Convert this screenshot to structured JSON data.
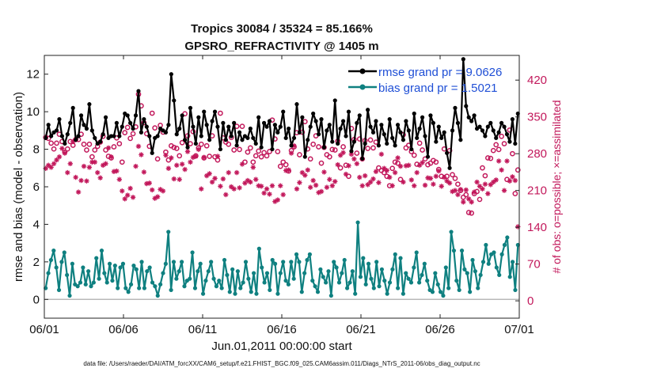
{
  "chart_data": {
    "type": "line",
    "title": "Tropics 30084 / 35324 = 85.166%",
    "subtitle": "GPSRO_REFRACTIVITY @ 1405 m",
    "xlabel": "Jun.01,2011 00:00:00 start",
    "ylabel": "rmse and bias (model - observation)",
    "ylabel_right": "# of obs: o=possible; ×=assimilated",
    "xlim": [
      0,
      30
    ],
    "ylim": [
      -1,
      13
    ],
    "ylim_right": [
      -33,
      467
    ],
    "x_tick_values": [
      0,
      5,
      10,
      15,
      20,
      25,
      30
    ],
    "x_tick_labels": [
      "06/01",
      "06/06",
      "06/11",
      "06/16",
      "06/21",
      "06/26",
      "07/01"
    ],
    "y_ticks": [
      0,
      2,
      4,
      6,
      8,
      10,
      12
    ],
    "y_ticks_right": [
      0,
      70,
      140,
      210,
      280,
      350,
      420
    ],
    "legend": [
      "rmse grand pr = 9.0626",
      "bias grand pr = 1.5021"
    ],
    "footer": "data file: /Users/raeder/DAI/ATM_forcXX/CAM6_setup/f.e21.FHIST_BGC.f09_025.CAM6assim.011/Diags_NTrS_2011-06/obs_diag_output.nc",
    "colors": {
      "rmse": "#000000",
      "bias": "#0f8080",
      "counts": "#c2185b",
      "zero_line": "#b9b9b9"
    },
    "series": [
      {
        "name": "rmse",
        "values": [
          8.6,
          9.3,
          8.7,
          8.9,
          9.0,
          9.6,
          8.7,
          8.3,
          8.8,
          9.4,
          10.2,
          8.5,
          8.7,
          9.8,
          9.3,
          9.1,
          10.4,
          9.0,
          8.6,
          8.3,
          8.4,
          8.8,
          9.7,
          8.6,
          8.7,
          8.7,
          9.4,
          8.7,
          9.2,
          9.9,
          9.8,
          9.4,
          9.1,
          9.8,
          11.1,
          8.9,
          9.6,
          9.2,
          8.7,
          7.8,
          8.6,
          8.7,
          9.1,
          9.0,
          8.9,
          9.3,
          12.0,
          10.6,
          8.8,
          9.1,
          9.8,
          8.5,
          8.1,
          10.2,
          9.2,
          8.3,
          9.7,
          8.7,
          10.0,
          9.3,
          8.5,
          9.5,
          10.0,
          9.2,
          8.0,
          9.4,
          8.5,
          9.2,
          8.7,
          9.4,
          8.2,
          8.9,
          8.5,
          8.7,
          8.6,
          9.1,
          8.6,
          8.3,
          9.7,
          8.1,
          9.4,
          9.2,
          9.5,
          8.0,
          9.3,
          8.9,
          9.2,
          10.0,
          8.6,
          9.1,
          8.2,
          8.6,
          10.4,
          8.9,
          9.7,
          7.6,
          8.5,
          9.2,
          9.9,
          9.5,
          8.8,
          9.6,
          8.1,
          9.0,
          9.3,
          8.4,
          10.6,
          8.3,
          9.1,
          9.5,
          8.7,
          10.0,
          7.9,
          8.4,
          9.4,
          9.8,
          7.5,
          8.3,
          10.1,
          9.2,
          8.9,
          9.5,
          8.2,
          9.3,
          8.8,
          8.3,
          9.6,
          8.6,
          8.2,
          9.3,
          8.9,
          8.5,
          9.5,
          9.0,
          8.0,
          9.9,
          8.6,
          9.1,
          9.7,
          8.7,
          7.6,
          9.8,
          9.4,
          8.4,
          9.2,
          8.6,
          8.9,
          7.8,
          7.0,
          9.0,
          10.2,
          9.4,
          8.5,
          12.8,
          10.3,
          9.7,
          9.5,
          9.8,
          9.1,
          9.2,
          9.0,
          8.7,
          9.2,
          9.4,
          9.0,
          8.6,
          8.9,
          9.4,
          9.2,
          8.8,
          8.4,
          9.6,
          8.3,
          9.9
        ]
      },
      {
        "name": "bias",
        "values": [
          0.6,
          1.4,
          2.1,
          2.6,
          1.7,
          0.5,
          2.0,
          2.5,
          1.3,
          0.2,
          1.9,
          0.8,
          0.7,
          0.9,
          1.7,
          0.8,
          1.5,
          0.7,
          0.9,
          2.2,
          1.1,
          2.6,
          1.4,
          0.9,
          1.9,
          1.0,
          1.8,
          0.6,
          1.7,
          1.9,
          0.6,
          0.4,
          0.8,
          1.8,
          1.6,
          0.6,
          2.0,
          0.6,
          1.5,
          1.7,
          0.9,
          0.7,
          0.2,
          0.8,
          1.4,
          1.9,
          3.6,
          0.5,
          2.0,
          1.1,
          1.5,
          2.0,
          0.7,
          1.0,
          1.1,
          2.5,
          0.6,
          1.5,
          1.9,
          0.3,
          1.0,
          1.5,
          2.0,
          1.1,
          0.7,
          1.0,
          0.6,
          2.1,
          1.3,
          0.4,
          1.6,
          0.3,
          1.5,
          0.6,
          0.9,
          2.0,
          1.1,
          0.4,
          1.4,
          0.3,
          2.7,
          1.7,
          0.9,
          1.4,
          0.5,
          2.1,
          1.9,
          0.3,
          1.4,
          2.0,
          1.0,
          0.8,
          2.0,
          1.1,
          2.4,
          2.0,
          0.4,
          1.4,
          2.1,
          2.4,
          1.0,
          0.7,
          0.4,
          1.6,
          1.2,
          0.9,
          1.5,
          0.2,
          2.0,
          1.7,
          0.9,
          1.4,
          2.1,
          0.6,
          0.9,
          1.5,
          0.3,
          4.1,
          1.2,
          2.2,
          0.8,
          1.9,
          1.1,
          0.6,
          2.0,
          0.7,
          1.6,
          1.0,
          0.3,
          0.9,
          1.6,
          2.4,
          0.6,
          2.2,
          0.3,
          1.4,
          1.1,
          0.9,
          1.7,
          2.5,
          0.9,
          1.3,
          1.9,
          1.0,
          0.5,
          0.4,
          1.4,
          0.8,
          0.4,
          0.2,
          1.7,
          0.6,
          3.6,
          2.6,
          1.0,
          0.5,
          2.6,
          1.6,
          1.4,
          0.4,
          2.1,
          1.5,
          0.6,
          1.3,
          2.0,
          2.9,
          1.9,
          2.4,
          2.5,
          1.7,
          1.3,
          2.4,
          2.9,
          3.3,
          1.2,
          2.0,
          0.5,
          2.9
        ]
      },
      {
        "name": "possible",
        "values": [
          311,
          309,
          300,
          289,
          300,
          317,
          303,
          283,
          289,
          303,
          296,
          307,
          307,
          317,
          298,
          287,
          298,
          274,
          287,
          294,
          302,
          313,
          287,
          275,
          272,
          293,
          310,
          299,
          264,
          320,
          330,
          309,
          318,
          331,
          393,
          371,
          339,
          318,
          294,
          357,
          329,
          270,
          334,
          321,
          283,
          268,
          295,
          292,
          290,
          276,
          301,
          356,
          314,
          299,
          322,
          276,
          291,
          298,
          272,
          295,
          275,
          314,
          274,
          268,
          357,
          310,
          302,
          298,
          311,
          287,
          332,
          288,
          332,
          264,
          283,
          291,
          264,
          276,
          285,
          274,
          282,
          276,
          284,
          344,
          308,
          284,
          256,
          264,
          259,
          247,
          286,
          293,
          320,
          278,
          321,
          341,
          289,
          270,
          298,
          314,
          293,
          262,
          292,
          278,
          274,
          288,
          287,
          304,
          253,
          293,
          258,
          237,
          328,
          307,
          281,
          308,
          270,
          305,
          290,
          306,
          291,
          302,
          253,
          248,
          244,
          237,
          219,
          252,
          264,
          262,
          231,
          316,
          291,
          296,
          284,
          277,
          260,
          300,
          287,
          270,
          259,
          262,
          267,
          264,
          250,
          237,
          289,
          237,
          286,
          240,
          233,
          222,
          210,
          197,
          202,
          168,
          167,
          204,
          208,
          193,
          253,
          238,
          272,
          271,
          286,
          297,
          288,
          313,
          299,
          231,
          325,
          280,
          204,
          249
        ]
      },
      {
        "name": "assimilated",
        "values": [
          252,
          258,
          254,
          261,
          268,
          274,
          290,
          281,
          244,
          261,
          303,
          235,
          207,
          229,
          256,
          228,
          254,
          264,
          264,
          244,
          234,
          258,
          261,
          291,
          274,
          246,
          247,
          231,
          209,
          194,
          201,
          214,
          197,
          256,
          294,
          278,
          245,
          223,
          224,
          211,
          195,
          198,
          212,
          209,
          277,
          252,
          272,
          232,
          258,
          231,
          260,
          250,
          284,
          264,
          273,
          275,
          288,
          213,
          273,
          238,
          242,
          226,
          233,
          275,
          218,
          232,
          202,
          244,
          217,
          213,
          244,
          215,
          260,
          224,
          229,
          226,
          254,
          231,
          219,
          218,
          205,
          213,
          203,
          219,
          189,
          192,
          219,
          202,
          248,
          249,
          281,
          295,
          213,
          225,
          244,
          239,
          249,
          216,
          229,
          220,
          206,
          208,
          245,
          216,
          231,
          219,
          227,
          259,
          277,
          282,
          241,
          257,
          279,
          270,
          261,
          235,
          219,
          238,
          221,
          226,
          232,
          246,
          225,
          279,
          252,
          248,
          235,
          219,
          244,
          272,
          256,
          226,
          257,
          258,
          230,
          219,
          244,
          258,
          263,
          220,
          234,
          233,
          222,
          237,
          247,
          218,
          235,
          228,
          224,
          208,
          210,
          202,
          212,
          188,
          211,
          194,
          188,
          207,
          226,
          218,
          213,
          222,
          204,
          221,
          226,
          230,
          266,
          249,
          210,
          266,
          228,
          236,
          229,
          141
        ]
      }
    ]
  }
}
